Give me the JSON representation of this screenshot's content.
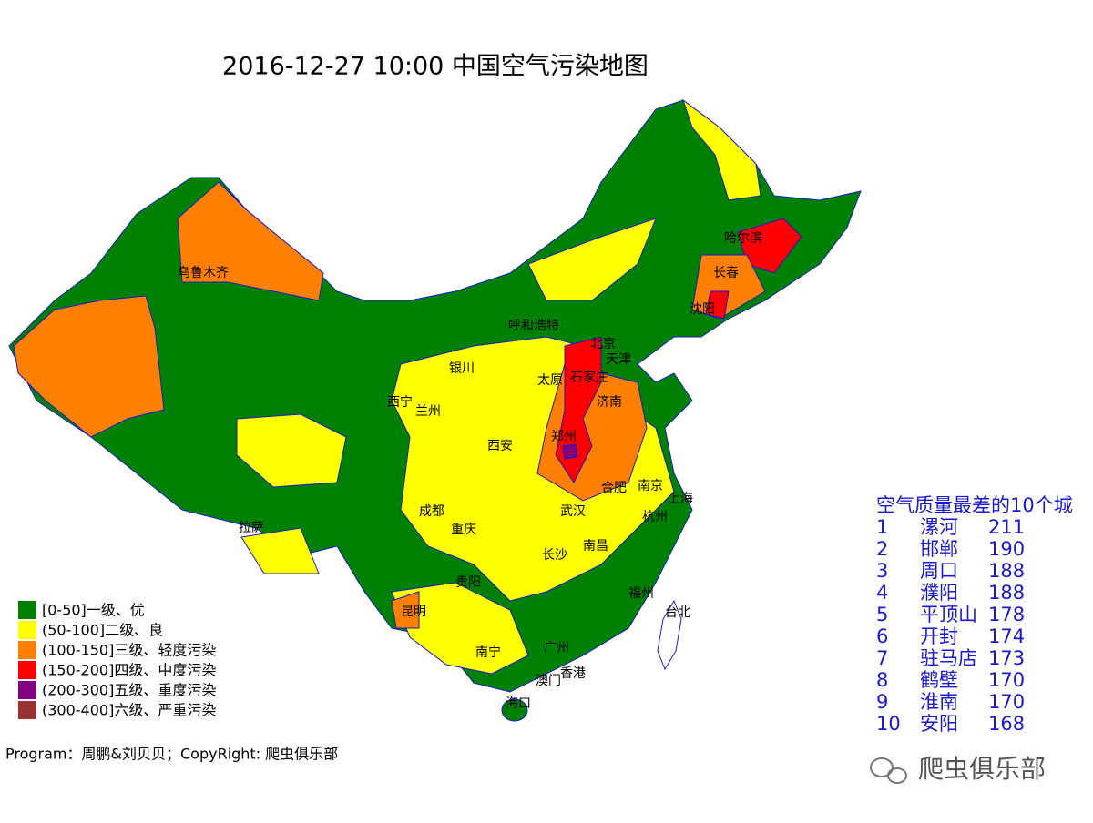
{
  "title": "2016-12-27 10:00 中国空气污染地图",
  "cities": [
    "乌鲁木齐",
    "哈尔滨",
    "长春",
    "沈阳",
    "呼和浩特",
    "北京",
    "天津",
    "石家庄",
    "太原",
    "银川",
    "西宁",
    "兰州",
    "济南",
    "西安",
    "郑州",
    "合肥",
    "南京",
    "上海",
    "成都",
    "重庆",
    "武汉",
    "杭州",
    "拉萨",
    "长沙",
    "南昌",
    "贵阳",
    "福州",
    "昆明",
    "台北",
    "南宁",
    "广州",
    "澳门",
    "香港",
    "海口"
  ],
  "legend": [
    {
      "label": "[0-50]一级、优",
      "color": "#008000"
    },
    {
      "label": "(50-100]二级、良",
      "color": "#ffff00"
    },
    {
      "label": "(100-150]三级、轻度污染",
      "color": "#ff7f00"
    },
    {
      "label": "(150-200]四级、中度污染",
      "color": "#ff0000"
    },
    {
      "label": "(200-300]五级、重度污染",
      "color": "#800080"
    },
    {
      "label": "(300-400]六级、严重污染",
      "color": "#993333"
    }
  ],
  "ranking": {
    "title": "空气质量最差的10个城",
    "rows": [
      {
        "rank": 1,
        "city": "漯河",
        "value": 211
      },
      {
        "rank": 2,
        "city": "邯郸",
        "value": 190
      },
      {
        "rank": 3,
        "city": "周口",
        "value": 188
      },
      {
        "rank": 4,
        "city": "濮阳",
        "value": 188
      },
      {
        "rank": 5,
        "city": "平顶山",
        "value": 178
      },
      {
        "rank": 6,
        "city": "开封",
        "value": 174
      },
      {
        "rank": 7,
        "city": "驻马店",
        "value": 173
      },
      {
        "rank": 8,
        "city": "鹤壁",
        "value": 170
      },
      {
        "rank": 9,
        "city": "淮南",
        "value": 170
      },
      {
        "rank": 10,
        "city": "安阳",
        "value": 168
      }
    ]
  },
  "footer": "Program：周鹏&刘贝贝；CopyRight: 爬虫俱乐部",
  "watermark": "爬虫俱乐部"
}
